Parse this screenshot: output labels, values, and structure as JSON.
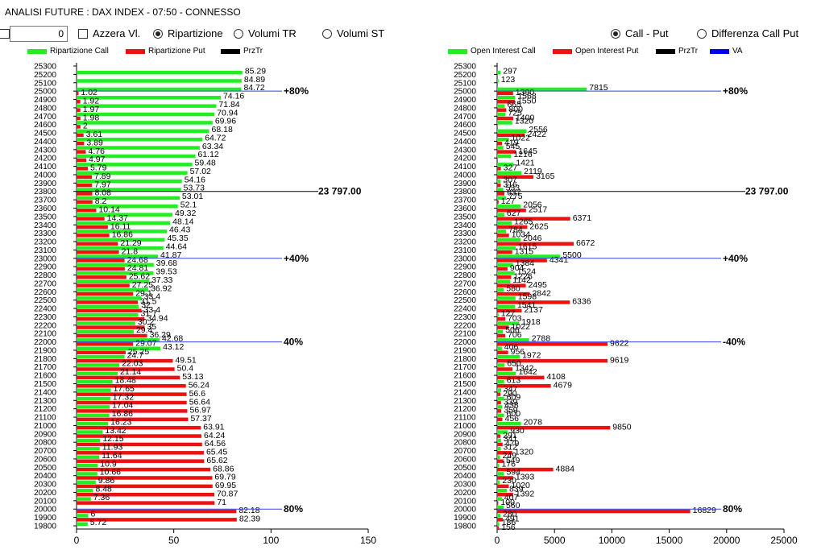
{
  "window": {
    "title": "ANALISI FUTURE : DAX INDEX - 07:50 - CONNESSO"
  },
  "toolbar": {
    "number_value": "0",
    "checkbox_label": "Azzera Vl.",
    "radio_left": [
      {
        "label": "Ripartizione",
        "selected": true
      },
      {
        "label": "Volumi TR",
        "selected": false
      },
      {
        "label": "Volumi ST",
        "selected": false
      }
    ],
    "radio_right": [
      {
        "label": "Call - Put",
        "selected": true
      },
      {
        "label": "Differenza Call Put",
        "selected": false
      }
    ]
  },
  "legend_left": [
    {
      "label": "Ripartizione Call",
      "color": "#22ee22"
    },
    {
      "label": "Ripartizione Put",
      "color": "#ee1111"
    },
    {
      "label": "PrzTr",
      "color": "#000000"
    }
  ],
  "legend_right": [
    {
      "label": "Open Interest Call",
      "color": "#22ee22"
    },
    {
      "label": "Open Interest Put",
      "color": "#ee1111"
    },
    {
      "label": "PrzTr",
      "color": "#000000"
    },
    {
      "label": "VA",
      "color": "#0000ee"
    }
  ],
  "chart_data": [
    {
      "type": "bar",
      "orientation": "horizontal",
      "categories": [
        "25300",
        "25200",
        "25100",
        "25000",
        "24900",
        "24800",
        "24700",
        "24600",
        "24500",
        "24400",
        "24300",
        "24200",
        "24100",
        "24000",
        "23900",
        "23800",
        "23700",
        "23600",
        "23500",
        "23400",
        "23300",
        "23200",
        "23100",
        "23000",
        "22900",
        "22800",
        "22700",
        "22600",
        "22500",
        "22400",
        "22300",
        "22200",
        "22100",
        "22000",
        "21900",
        "21800",
        "21700",
        "21600",
        "21500",
        "21400",
        "21300",
        "21200",
        "21100",
        "21000",
        "20900",
        "20800",
        "20700",
        "20600",
        "20500",
        "20400",
        "20300",
        "20200",
        "20100",
        "20000",
        "19900",
        "19800"
      ],
      "series": [
        {
          "name": "Ripartizione Call",
          "values": [
            null,
            85.29,
            84.89,
            84.72,
            74.16,
            71.84,
            70.94,
            69.96,
            68.18,
            64.72,
            63.34,
            61.12,
            59.48,
            57.02,
            54.16,
            53.73,
            53.01,
            52.1,
            49.32,
            48.14,
            46.43,
            45.35,
            44.64,
            41.87,
            39.68,
            39.53,
            37.33,
            36.92,
            33.4,
            32.0,
            31.7,
            30.2,
            29.4,
            42.68,
            43.12,
            24.7,
            22.03,
            21.14,
            18.48,
            17.65,
            17.32,
            17.04,
            16.86,
            16.23,
            13.42,
            12.15,
            11.93,
            11.64,
            10.9,
            10.66,
            9.86,
            8.48,
            7.36,
            null,
            6,
            5.72
          ]
        },
        {
          "name": "Ripartizione Put",
          "values": [
            null,
            null,
            null,
            1.02,
            1.92,
            1.97,
            1.98,
            2,
            3.61,
            3.89,
            4.76,
            4.97,
            5.79,
            7.89,
            7.97,
            8.08,
            8.2,
            10.14,
            14.37,
            16.11,
            16.86,
            21.29,
            21.8,
            24.68,
            24.81,
            25.62,
            27.25,
            29.1,
            31.5,
            33.4,
            34.94,
            35.0,
            36.29,
            29.07,
            25.25,
            49.51,
            50.4,
            53.13,
            56.24,
            56.6,
            56.64,
            56.97,
            57.37,
            63.91,
            64.24,
            64.56,
            65.45,
            65.62,
            68.86,
            69.79,
            69.95,
            70.87,
            71,
            82.18,
            82.39,
            null
          ]
        }
      ],
      "price_line": {
        "strike": "23800",
        "label": "23 797.00"
      },
      "markers": [
        {
          "strike": "25000",
          "label": "+80%"
        },
        {
          "strike": "23000",
          "label": "+40%"
        },
        {
          "strike": "22000",
          "label": "40%"
        },
        {
          "strike": "20000",
          "label": "80%"
        }
      ],
      "xlim": [
        0,
        150
      ],
      "xticks": [
        "0",
        "50",
        "100",
        "150"
      ]
    },
    {
      "type": "bar",
      "orientation": "horizontal",
      "categories": [
        "25300",
        "25200",
        "25100",
        "25000",
        "24900",
        "24800",
        "24700",
        "24600",
        "24500",
        "24400",
        "24300",
        "24200",
        "24100",
        "24000",
        "23900",
        "23800",
        "23700",
        "23600",
        "23500",
        "23400",
        "23300",
        "23200",
        "23100",
        "23000",
        "22900",
        "22800",
        "22700",
        "22600",
        "22500",
        "22400",
        "22300",
        "22200",
        "22100",
        "22000",
        "21900",
        "21800",
        "21700",
        "21600",
        "21500",
        "21400",
        "21300",
        "21200",
        "21100",
        "21000",
        "20900",
        "20800",
        "20700",
        "20600",
        "20500",
        "20400",
        "20300",
        "20200",
        "20100",
        "20000",
        "19900",
        "19800"
      ],
      "series": [
        {
          "name": "Open Interest Call",
          "values": [
            null,
            297,
            123,
            7815,
            1568,
            665,
            725,
            1320,
            2556,
            1022,
            545,
            1216,
            1421,
            2119,
            307,
            533,
            775,
            2056,
            627,
            1265,
            784,
            2046,
            1615,
            5500,
            1384,
            1524,
            1142,
            580,
            1598,
            1541,
            127,
            1918,
            506,
            2788,
            406,
            1972,
            650,
            1642,
            613,
            347,
            609,
            438,
            600,
            2078,
            930,
            341,
            312,
            249,
            176,
            594,
            230,
            839,
            407,
            560,
            280,
            186
          ]
        },
        {
          "name": "Open Interest Put",
          "values": [
            null,
            null,
            null,
            1390,
            1550,
            800,
            1400,
            null,
            2422,
            419,
            1645,
            null,
            327,
            3165,
            316,
            637,
            127,
            2517,
            6371,
            2625,
            1034,
            6672,
            1315,
            4341,
            904,
            1226,
            2495,
            2842,
            6336,
            2137,
            703,
            1022,
            706,
            9622,
            956,
            9619,
            1342,
            4108,
            4679,
            290,
            339,
            359,
            456,
            9850,
            291,
            479,
            1320,
            549,
            4884,
            1393,
            1020,
            1392,
            100,
            16829,
            491,
            156
          ]
        }
      ],
      "price_line": {
        "strike": "23800",
        "label": "23 797.00"
      },
      "markers": [
        {
          "strike": "25000",
          "label": "+80%"
        },
        {
          "strike": "23000",
          "label": "+40%"
        },
        {
          "strike": "22000",
          "label": "-40%"
        },
        {
          "strike": "20000",
          "label": "80%"
        }
      ],
      "xlim": [
        0,
        25000
      ],
      "xticks": [
        "0",
        "5000",
        "10000",
        "15000",
        "20000",
        "25000"
      ]
    }
  ]
}
